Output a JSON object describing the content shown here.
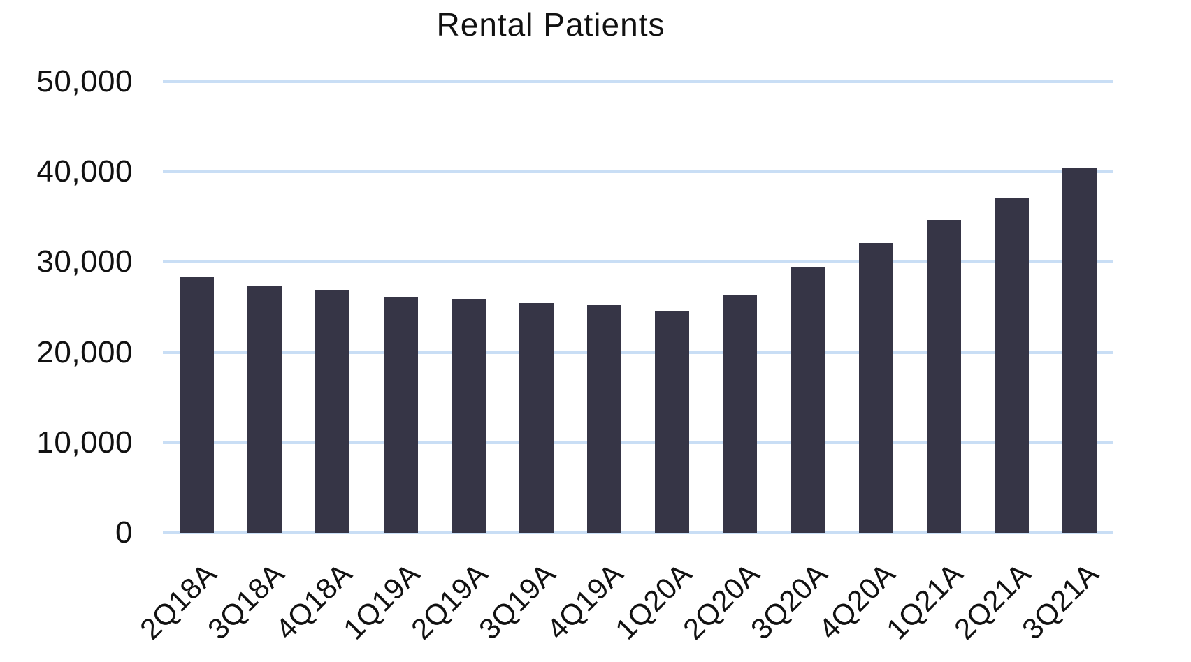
{
  "chart_data": {
    "type": "bar",
    "title": "Rental Patients",
    "categories": [
      "2Q18A",
      "3Q18A",
      "4Q18A",
      "1Q19A",
      "2Q19A",
      "3Q19A",
      "4Q19A",
      "1Q20A",
      "2Q20A",
      "3Q20A",
      "4Q20A",
      "1Q21A",
      "2Q21A",
      "3Q21A"
    ],
    "values": [
      28400,
      27400,
      26900,
      26200,
      25900,
      25500,
      25200,
      24500,
      26300,
      29400,
      32100,
      34700,
      37100,
      40450
    ],
    "xlabel": "",
    "ylabel": "",
    "ylim": [
      0,
      50000
    ],
    "yticks": [
      {
        "value": 0,
        "label": "0"
      },
      {
        "value": 10000,
        "label": "10,000"
      },
      {
        "value": 20000,
        "label": "20,000"
      },
      {
        "value": 30000,
        "label": "30,000"
      },
      {
        "value": 40000,
        "label": "40,000"
      },
      {
        "value": 50000,
        "label": "50,000"
      }
    ],
    "grid": true,
    "legend": false,
    "bar_color": "#363546",
    "gridline_color": "#c9def5",
    "text_color": "#111111",
    "background_color": "#ffffff"
  }
}
